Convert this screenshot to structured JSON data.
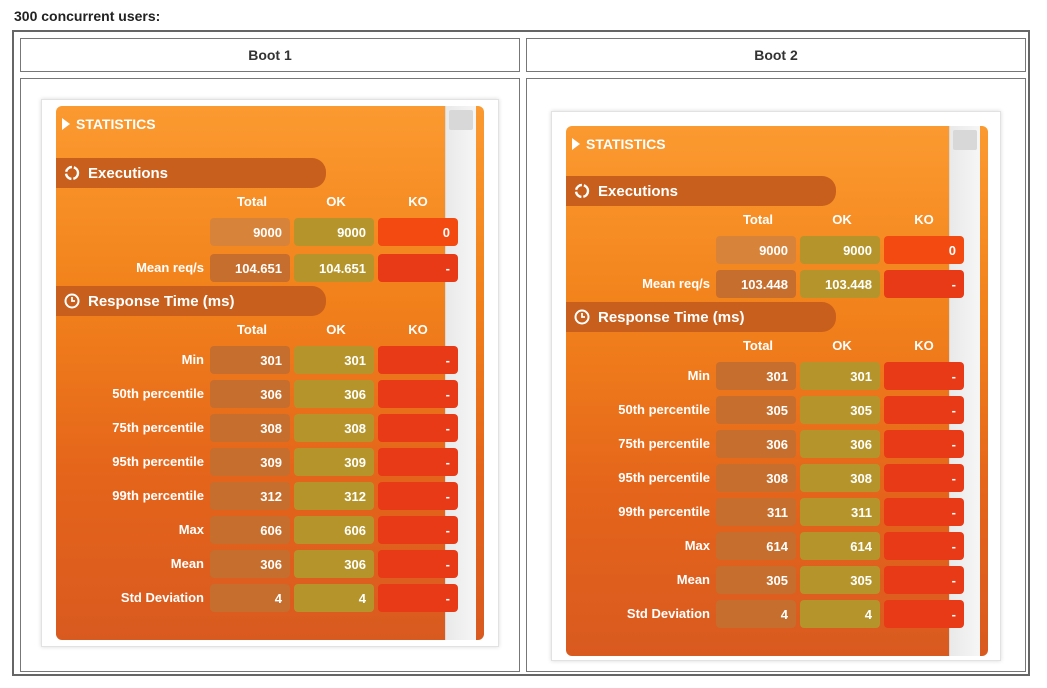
{
  "heading": "300 concurrent users:",
  "columns": [
    "Boot 1",
    "Boot 2"
  ],
  "panel_title": "STATISTICS",
  "sections": {
    "executions": "Executions",
    "response_time": "Response Time (ms)"
  },
  "table_headers": {
    "total": "Total",
    "ok": "OK",
    "ko": "KO"
  },
  "boot1": {
    "executions": {
      "total": "9000",
      "ok": "9000",
      "ko": "0"
    },
    "mean_reqs": {
      "label": "Mean req/s",
      "total": "104.651",
      "ok": "104.651",
      "ko": "-"
    },
    "response": [
      {
        "label": "Min",
        "total": "301",
        "ok": "301",
        "ko": "-"
      },
      {
        "label": "50th percentile",
        "total": "306",
        "ok": "306",
        "ko": "-"
      },
      {
        "label": "75th percentile",
        "total": "308",
        "ok": "308",
        "ko": "-"
      },
      {
        "label": "95th percentile",
        "total": "309",
        "ok": "309",
        "ko": "-"
      },
      {
        "label": "99th percentile",
        "total": "312",
        "ok": "312",
        "ko": "-"
      },
      {
        "label": "Max",
        "total": "606",
        "ok": "606",
        "ko": "-"
      },
      {
        "label": "Mean",
        "total": "306",
        "ok": "306",
        "ko": "-"
      },
      {
        "label": "Std Deviation",
        "total": "4",
        "ok": "4",
        "ko": "-"
      }
    ]
  },
  "boot2": {
    "executions": {
      "total": "9000",
      "ok": "9000",
      "ko": "0"
    },
    "mean_reqs": {
      "label": "Mean req/s",
      "total": "103.448",
      "ok": "103.448",
      "ko": "-"
    },
    "response": [
      {
        "label": "Min",
        "total": "301",
        "ok": "301",
        "ko": "-"
      },
      {
        "label": "50th percentile",
        "total": "305",
        "ok": "305",
        "ko": "-"
      },
      {
        "label": "75th percentile",
        "total": "306",
        "ok": "306",
        "ko": "-"
      },
      {
        "label": "95th percentile",
        "total": "308",
        "ok": "308",
        "ko": "-"
      },
      {
        "label": "99th percentile",
        "total": "311",
        "ok": "311",
        "ko": "-"
      },
      {
        "label": "Max",
        "total": "614",
        "ok": "614",
        "ko": "-"
      },
      {
        "label": "Mean",
        "total": "305",
        "ok": "305",
        "ko": "-"
      },
      {
        "label": "Std Deviation",
        "total": "4",
        "ok": "4",
        "ko": "-"
      }
    ]
  },
  "colors": {
    "panel_top": "#fb9a30",
    "panel_bottom": "#d95a1f",
    "ok_box": "#b5952b",
    "ko_box": "#e83a16"
  }
}
